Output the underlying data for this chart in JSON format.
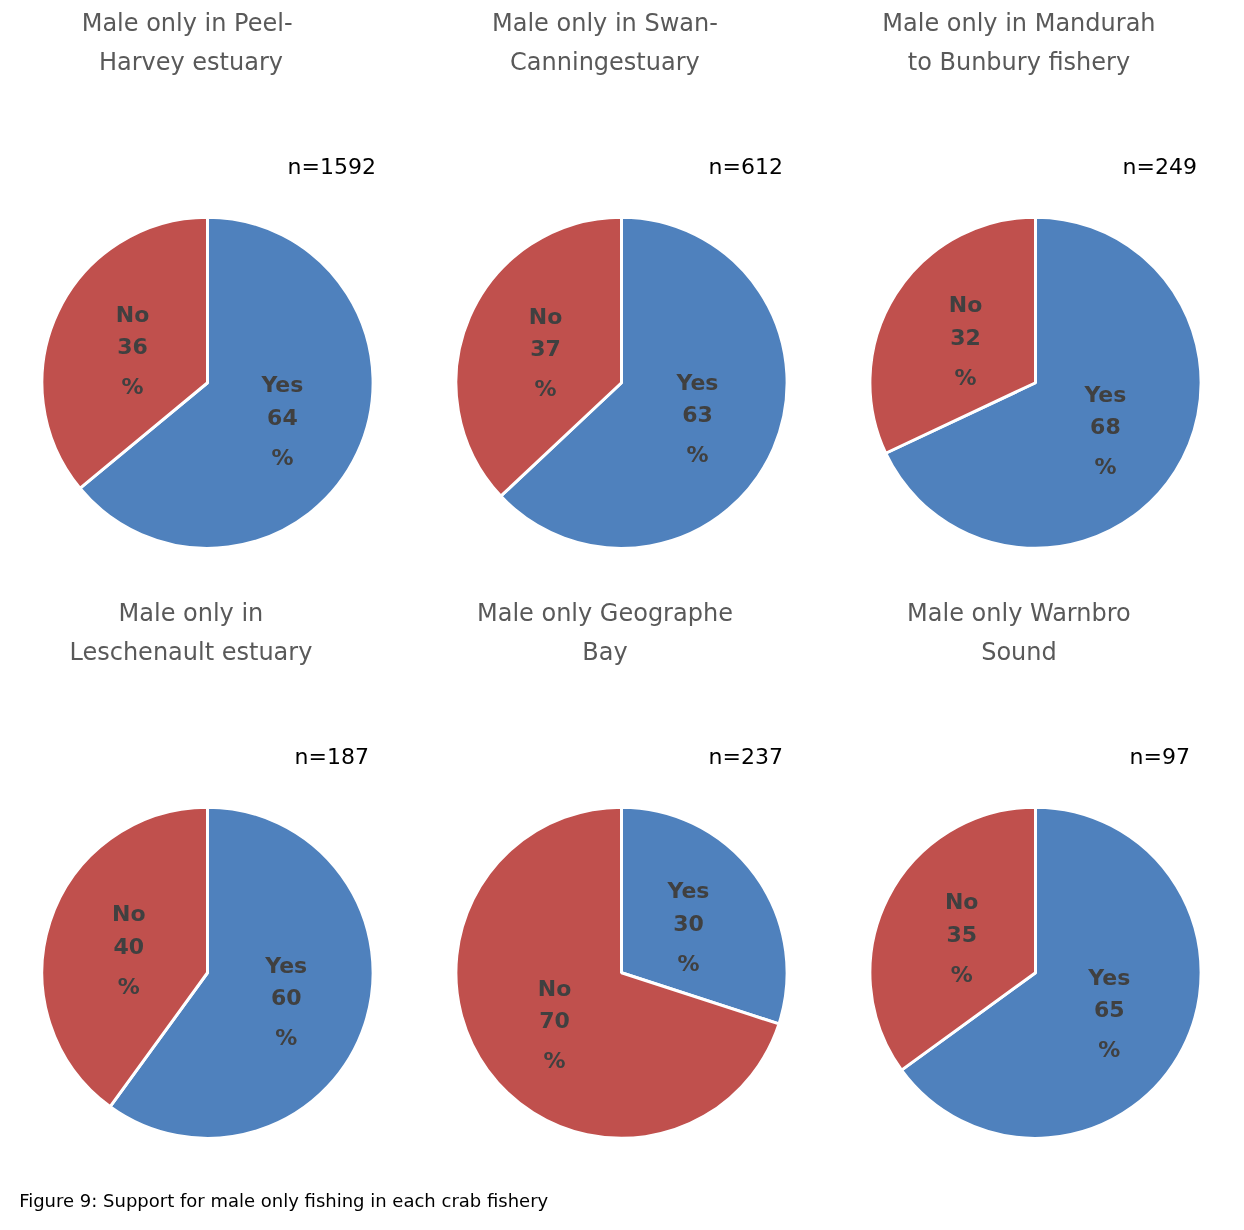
{
  "chart_data": [
    {
      "type": "pie",
      "title": "Male only in  Peel-Harvey estuary",
      "categories": [
        "Yes",
        "No"
      ],
      "values": [
        64,
        36
      ],
      "colors": [
        "#4f81bd",
        "#c0504d"
      ],
      "value_labels": [
        "64\n%",
        "36\n%"
      ],
      "annotations": [
        "n=1592"
      ]
    },
    {
      "type": "pie",
      "title": "Male only in Swan-Canningestuary",
      "categories": [
        "Yes",
        "No"
      ],
      "values": [
        63,
        37
      ],
      "colors": [
        "#4f81bd",
        "#c0504d"
      ],
      "value_labels": [
        "63\n%",
        "37\n%"
      ],
      "annotations": [
        "n=612"
      ]
    },
    {
      "type": "pie",
      "title": "Male only in Mandurah to Bunbury fishery",
      "categories": [
        "Yes",
        "No"
      ],
      "values": [
        68,
        32
      ],
      "colors": [
        "#4f81bd",
        "#c0504d"
      ],
      "value_labels": [
        "68\n%",
        "32\n%"
      ],
      "annotations": [
        "n=249"
      ]
    },
    {
      "type": "pie",
      "title": "Male only in Leschenault estuary",
      "categories": [
        "Yes",
        "No"
      ],
      "values": [
        60,
        40
      ],
      "colors": [
        "#4f81bd",
        "#c0504d"
      ],
      "value_labels": [
        "60\n%",
        "40\n%"
      ],
      "annotations": [
        "n=187"
      ]
    },
    {
      "type": "pie",
      "title": "Male only Geographe Bay",
      "categories": [
        "Yes",
        "No"
      ],
      "values": [
        30,
        70
      ],
      "colors": [
        "#4f81bd",
        "#c0504d"
      ],
      "value_labels": [
        "30\n%",
        "70\n%"
      ],
      "annotations": [
        "n=237"
      ]
    },
    {
      "type": "pie",
      "title": "Male only Warnbro Sound",
      "categories": [
        "Yes",
        "No"
      ],
      "values": [
        65,
        35
      ],
      "colors": [
        "#4f81bd",
        "#c0504d"
      ],
      "value_labels": [
        "65\n%",
        "35\n%"
      ],
      "annotations": [
        "n=97",
        "Figure 9: Support for male only fishing in each crab fishery"
      ]
    }
  ]
}
